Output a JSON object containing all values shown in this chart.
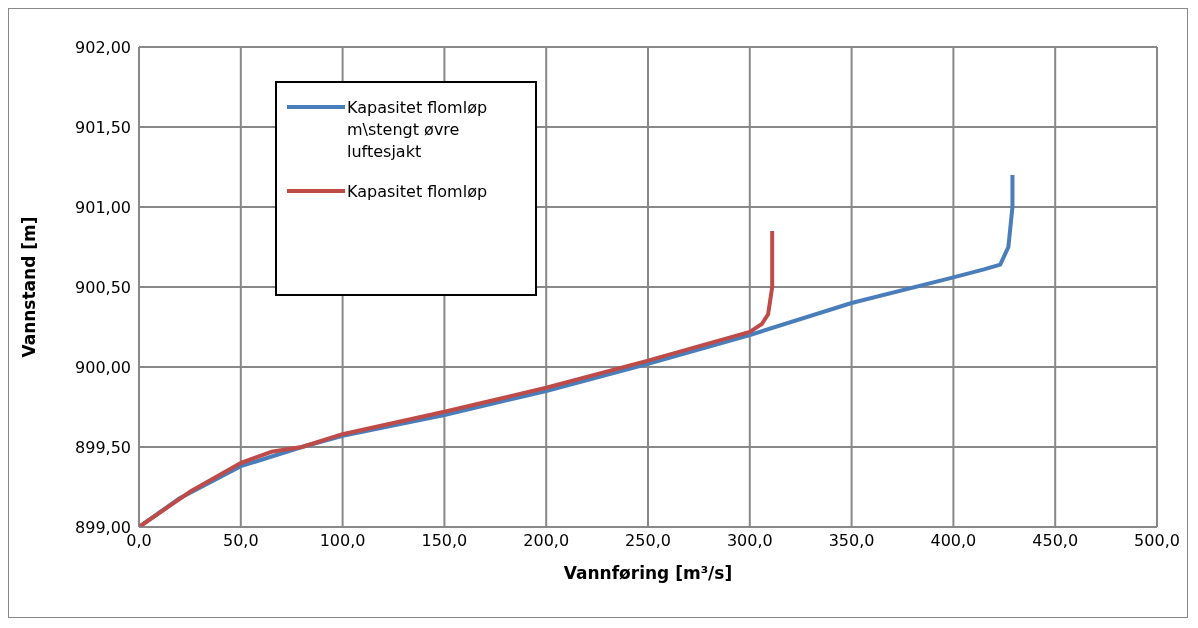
{
  "chart_data": {
    "type": "line",
    "xlabel": "Vannføring [m³/s]",
    "ylabel": "Vannstand [m]",
    "xlim": [
      0,
      500
    ],
    "xticks": [
      {
        "value": 0,
        "label": "0,0"
      },
      {
        "value": 50,
        "label": "50,0"
      },
      {
        "value": 100,
        "label": "100,0"
      },
      {
        "value": 150,
        "label": "150,0"
      },
      {
        "value": 200,
        "label": "200,0"
      },
      {
        "value": 250,
        "label": "250,0"
      },
      {
        "value": 300,
        "label": "300,0"
      },
      {
        "value": 350,
        "label": "350,0"
      },
      {
        "value": 400,
        "label": "400,0"
      },
      {
        "value": 450,
        "label": "450,0"
      },
      {
        "value": 500,
        "label": "500,0"
      }
    ],
    "ylim": [
      899,
      902
    ],
    "yticks": [
      {
        "value": 899,
        "label": "899,00"
      },
      {
        "value": 899.5,
        "label": "899,50"
      },
      {
        "value": 900,
        "label": "900,00"
      },
      {
        "value": 900.5,
        "label": "900,50"
      },
      {
        "value": 901,
        "label": "901,00"
      },
      {
        "value": 901.5,
        "label": "901,50"
      },
      {
        "value": 902,
        "label": "902,00"
      }
    ],
    "grid": true,
    "legend": "top left",
    "marker": "none",
    "line_style": "solid",
    "series": [
      {
        "name": "Kapasitet flomløp m\\stengt øvre luftesjakt",
        "color": "#4a7ebb",
        "x": [
          0,
          20,
          50,
          80,
          100,
          150,
          200,
          250,
          300,
          350,
          400,
          415,
          423,
          427,
          429,
          429
        ],
        "values": [
          899,
          899.18,
          899.38,
          899.5,
          899.57,
          899.7,
          899.85,
          900.02,
          900.2,
          900.4,
          900.56,
          900.61,
          900.64,
          900.75,
          901,
          901.2
        ]
      },
      {
        "name": "Kapasitet flomløp",
        "color": "#be4b48",
        "x": [
          0,
          25,
          50,
          65,
          80,
          100,
          150,
          200,
          250,
          300,
          306,
          309,
          311,
          311
        ],
        "values": [
          899,
          899.22,
          899.4,
          899.47,
          899.5,
          899.58,
          899.72,
          899.87,
          900.04,
          900.22,
          900.27,
          900.33,
          900.5,
          900.85
        ]
      }
    ]
  }
}
